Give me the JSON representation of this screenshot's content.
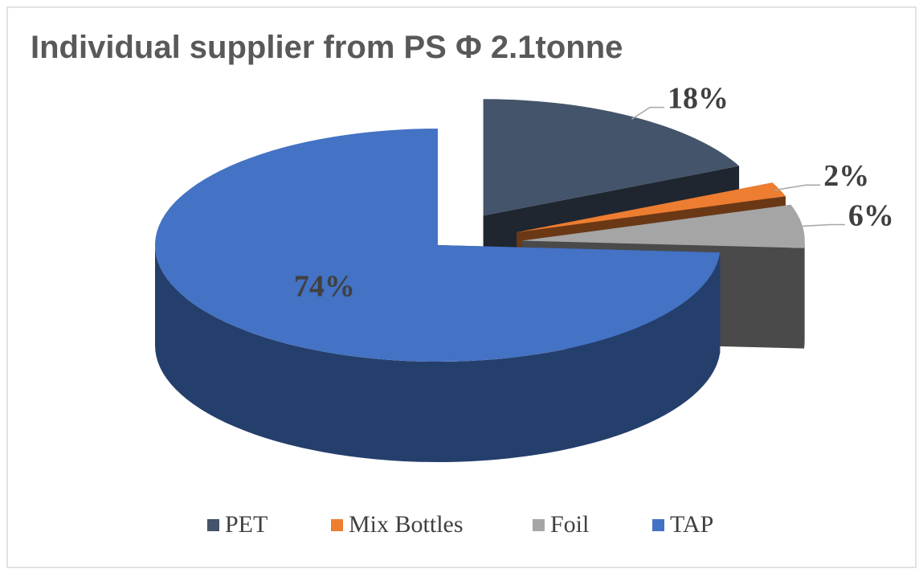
{
  "chart_data": {
    "type": "pie",
    "title": "Individual supplier from PS Φ 2.1tonne",
    "categories": [
      "PET",
      "Mix Bottles",
      "Foil",
      "TAP"
    ],
    "values": [
      18,
      2,
      6,
      74
    ],
    "value_labels": [
      "18%",
      "2%",
      "6%",
      "74%"
    ],
    "colors": [
      "#44546a",
      "#ed7d31",
      "#a5a5a5",
      "#4472c4"
    ],
    "legend": "bottom"
  }
}
